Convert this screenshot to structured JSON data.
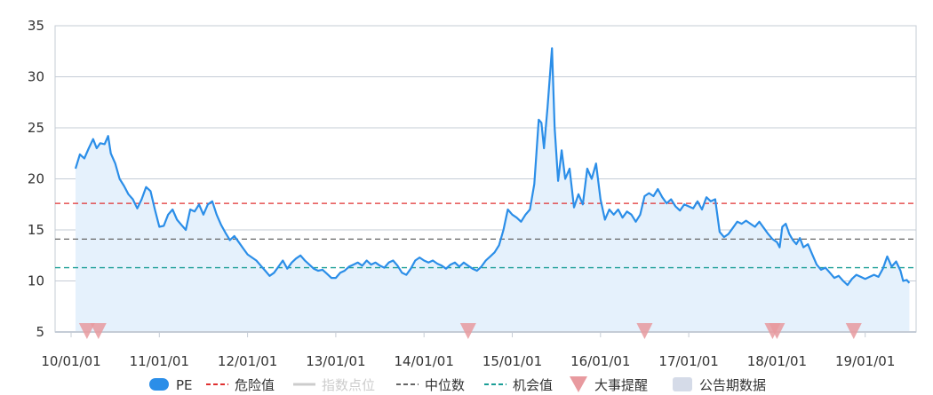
{
  "chart_data": {
    "type": "line",
    "ylim": [
      5,
      35
    ],
    "yticks": [
      5,
      10,
      15,
      20,
      25,
      30,
      35
    ],
    "xticks": [
      "10/01/01",
      "11/01/01",
      "12/01/01",
      "13/01/01",
      "14/01/01",
      "15/01/01",
      "16/01/01",
      "17/01/01",
      "18/01/01",
      "19/01/01"
    ],
    "x_range": [
      2010.0,
      2019.55
    ],
    "grid": "horizontal",
    "legend_position": "bottom",
    "series": [
      {
        "name": "PE",
        "color": "#2b8ee8",
        "area": true,
        "points": [
          [
            2010.05,
            21.0
          ],
          [
            2010.1,
            22.4
          ],
          [
            2010.15,
            22.0
          ],
          [
            2010.2,
            23.0
          ],
          [
            2010.25,
            23.9
          ],
          [
            2010.29,
            23.0
          ],
          [
            2010.33,
            23.5
          ],
          [
            2010.38,
            23.4
          ],
          [
            2010.42,
            24.2
          ],
          [
            2010.45,
            22.5
          ],
          [
            2010.5,
            21.5
          ],
          [
            2010.55,
            20.0
          ],
          [
            2010.6,
            19.3
          ],
          [
            2010.65,
            18.5
          ],
          [
            2010.7,
            18.0
          ],
          [
            2010.75,
            17.1
          ],
          [
            2010.8,
            18.0
          ],
          [
            2010.85,
            19.2
          ],
          [
            2010.9,
            18.8
          ],
          [
            2010.95,
            17.0
          ],
          [
            2011.0,
            15.3
          ],
          [
            2011.05,
            15.4
          ],
          [
            2011.1,
            16.5
          ],
          [
            2011.15,
            17.0
          ],
          [
            2011.2,
            16.0
          ],
          [
            2011.25,
            15.5
          ],
          [
            2011.3,
            15.0
          ],
          [
            2011.35,
            17.0
          ],
          [
            2011.4,
            16.8
          ],
          [
            2011.45,
            17.5
          ],
          [
            2011.5,
            16.5
          ],
          [
            2011.55,
            17.5
          ],
          [
            2011.6,
            17.8
          ],
          [
            2011.65,
            16.5
          ],
          [
            2011.7,
            15.5
          ],
          [
            2011.75,
            14.7
          ],
          [
            2011.8,
            14.0
          ],
          [
            2011.85,
            14.4
          ],
          [
            2011.9,
            13.8
          ],
          [
            2011.95,
            13.2
          ],
          [
            2012.0,
            12.6
          ],
          [
            2012.05,
            12.3
          ],
          [
            2012.1,
            12.0
          ],
          [
            2012.15,
            11.5
          ],
          [
            2012.2,
            11.0
          ],
          [
            2012.25,
            10.5
          ],
          [
            2012.3,
            10.8
          ],
          [
            2012.35,
            11.4
          ],
          [
            2012.4,
            12.0
          ],
          [
            2012.45,
            11.2
          ],
          [
            2012.5,
            11.8
          ],
          [
            2012.55,
            12.2
          ],
          [
            2012.6,
            12.5
          ],
          [
            2012.65,
            12.0
          ],
          [
            2012.7,
            11.6
          ],
          [
            2012.75,
            11.2
          ],
          [
            2012.8,
            11.0
          ],
          [
            2012.85,
            11.1
          ],
          [
            2012.9,
            10.7
          ],
          [
            2012.95,
            10.3
          ],
          [
            2013.0,
            10.3
          ],
          [
            2013.05,
            10.8
          ],
          [
            2013.1,
            11.0
          ],
          [
            2013.15,
            11.4
          ],
          [
            2013.2,
            11.6
          ],
          [
            2013.25,
            11.8
          ],
          [
            2013.3,
            11.5
          ],
          [
            2013.35,
            12.0
          ],
          [
            2013.4,
            11.6
          ],
          [
            2013.45,
            11.8
          ],
          [
            2013.5,
            11.5
          ],
          [
            2013.55,
            11.3
          ],
          [
            2013.6,
            11.8
          ],
          [
            2013.65,
            12.0
          ],
          [
            2013.7,
            11.5
          ],
          [
            2013.75,
            10.8
          ],
          [
            2013.8,
            10.6
          ],
          [
            2013.85,
            11.2
          ],
          [
            2013.9,
            12.0
          ],
          [
            2013.95,
            12.3
          ],
          [
            2014.0,
            12.0
          ],
          [
            2014.05,
            11.8
          ],
          [
            2014.1,
            12.0
          ],
          [
            2014.15,
            11.7
          ],
          [
            2014.2,
            11.5
          ],
          [
            2014.25,
            11.2
          ],
          [
            2014.3,
            11.6
          ],
          [
            2014.35,
            11.8
          ],
          [
            2014.4,
            11.4
          ],
          [
            2014.45,
            11.8
          ],
          [
            2014.5,
            11.5
          ],
          [
            2014.55,
            11.2
          ],
          [
            2014.6,
            11.0
          ],
          [
            2014.65,
            11.4
          ],
          [
            2014.7,
            12.0
          ],
          [
            2014.75,
            12.4
          ],
          [
            2014.8,
            12.8
          ],
          [
            2014.85,
            13.5
          ],
          [
            2014.9,
            15.0
          ],
          [
            2014.95,
            17.0
          ],
          [
            2015.0,
            16.5
          ],
          [
            2015.05,
            16.2
          ],
          [
            2015.1,
            15.8
          ],
          [
            2015.15,
            16.5
          ],
          [
            2015.2,
            17.0
          ],
          [
            2015.25,
            19.5
          ],
          [
            2015.3,
            25.8
          ],
          [
            2015.33,
            25.5
          ],
          [
            2015.36,
            23.0
          ],
          [
            2015.4,
            27.0
          ],
          [
            2015.45,
            32.8
          ],
          [
            2015.48,
            25.0
          ],
          [
            2015.52,
            19.8
          ],
          [
            2015.56,
            22.8
          ],
          [
            2015.6,
            20.0
          ],
          [
            2015.65,
            21.0
          ],
          [
            2015.7,
            17.2
          ],
          [
            2015.75,
            18.5
          ],
          [
            2015.8,
            17.5
          ],
          [
            2015.85,
            21.0
          ],
          [
            2015.9,
            20.0
          ],
          [
            2015.95,
            21.5
          ],
          [
            2016.0,
            18.0
          ],
          [
            2016.05,
            16.0
          ],
          [
            2016.1,
            17.0
          ],
          [
            2016.15,
            16.5
          ],
          [
            2016.2,
            17.0
          ],
          [
            2016.25,
            16.2
          ],
          [
            2016.3,
            16.8
          ],
          [
            2016.35,
            16.5
          ],
          [
            2016.4,
            15.8
          ],
          [
            2016.45,
            16.5
          ],
          [
            2016.5,
            18.3
          ],
          [
            2016.55,
            18.6
          ],
          [
            2016.6,
            18.3
          ],
          [
            2016.65,
            19.0
          ],
          [
            2016.7,
            18.2
          ],
          [
            2016.75,
            17.6
          ],
          [
            2016.8,
            18.0
          ],
          [
            2016.85,
            17.3
          ],
          [
            2016.9,
            16.9
          ],
          [
            2016.95,
            17.5
          ],
          [
            2017.0,
            17.3
          ],
          [
            2017.05,
            17.1
          ],
          [
            2017.1,
            17.8
          ],
          [
            2017.15,
            17.0
          ],
          [
            2017.2,
            18.2
          ],
          [
            2017.25,
            17.8
          ],
          [
            2017.3,
            18.0
          ],
          [
            2017.35,
            14.8
          ],
          [
            2017.4,
            14.3
          ],
          [
            2017.45,
            14.6
          ],
          [
            2017.5,
            15.2
          ],
          [
            2017.55,
            15.8
          ],
          [
            2017.6,
            15.6
          ],
          [
            2017.65,
            15.9
          ],
          [
            2017.7,
            15.6
          ],
          [
            2017.75,
            15.3
          ],
          [
            2017.8,
            15.8
          ],
          [
            2017.85,
            15.2
          ],
          [
            2017.9,
            14.6
          ],
          [
            2017.95,
            14.1
          ],
          [
            2018.0,
            13.8
          ],
          [
            2018.03,
            13.3
          ],
          [
            2018.06,
            15.3
          ],
          [
            2018.1,
            15.6
          ],
          [
            2018.14,
            14.6
          ],
          [
            2018.18,
            14.0
          ],
          [
            2018.22,
            13.6
          ],
          [
            2018.26,
            14.2
          ],
          [
            2018.3,
            13.3
          ],
          [
            2018.35,
            13.6
          ],
          [
            2018.4,
            12.6
          ],
          [
            2018.45,
            11.6
          ],
          [
            2018.5,
            11.1
          ],
          [
            2018.55,
            11.3
          ],
          [
            2018.6,
            10.8
          ],
          [
            2018.65,
            10.3
          ],
          [
            2018.7,
            10.5
          ],
          [
            2018.75,
            10.0
          ],
          [
            2018.8,
            9.6
          ],
          [
            2018.85,
            10.2
          ],
          [
            2018.9,
            10.6
          ],
          [
            2018.95,
            10.4
          ],
          [
            2019.0,
            10.2
          ],
          [
            2019.05,
            10.4
          ],
          [
            2019.1,
            10.6
          ],
          [
            2019.15,
            10.4
          ],
          [
            2019.2,
            11.2
          ],
          [
            2019.25,
            12.4
          ],
          [
            2019.3,
            11.4
          ],
          [
            2019.35,
            11.9
          ],
          [
            2019.4,
            11.0
          ],
          [
            2019.43,
            10.0
          ],
          [
            2019.47,
            10.1
          ],
          [
            2019.5,
            9.8
          ]
        ]
      },
      {
        "name": "危险值",
        "color": "#e03131",
        "value": 17.6,
        "dash": true
      },
      {
        "name": "指数点位",
        "color": "#cccccc",
        "hidden": true
      },
      {
        "name": "中位数",
        "color": "#666666",
        "value": 14.1,
        "dash": true
      },
      {
        "name": "机会值",
        "color": "#1a9e96",
        "value": 11.3,
        "dash": true
      },
      {
        "name": "大事提醒",
        "color": "#e89a9f",
        "markers_x": [
          2010.18,
          2010.31,
          2014.5,
          2016.5,
          2017.95,
          2018.0,
          2018.87
        ]
      },
      {
        "name": "公告期数据",
        "color": "#d5dbe8"
      }
    ]
  }
}
